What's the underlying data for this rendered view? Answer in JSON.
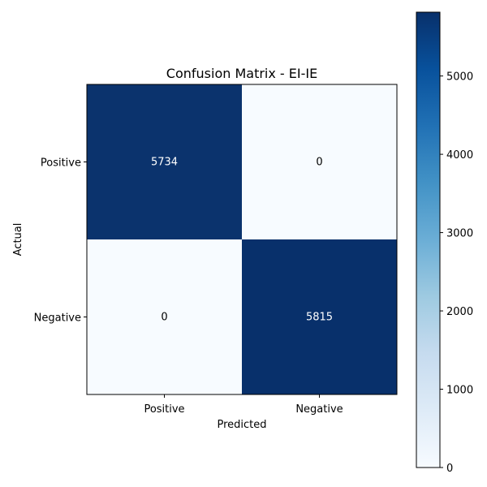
{
  "chart_data": {
    "type": "heatmap",
    "title": "Confusion Matrix - EI-IE",
    "xlabel": "Predicted",
    "ylabel": "Actual",
    "x_categories": [
      "Positive",
      "Negative"
    ],
    "y_categories": [
      "Positive",
      "Negative"
    ],
    "values": [
      [
        5734,
        0
      ],
      [
        0,
        5815
      ]
    ],
    "value_labels": [
      [
        "5734",
        "0"
      ],
      [
        "0",
        "5815"
      ]
    ],
    "colormap": "Blues",
    "color_low": "#f7fbff",
    "color_high": "#08306b",
    "vmin": 0,
    "vmax": 5815,
    "colorbar_ticks": [
      "0",
      "1000",
      "2000",
      "3000",
      "4000",
      "5000"
    ],
    "colorbar_tick_values": [
      0,
      1000,
      2000,
      3000,
      4000,
      5000
    ]
  }
}
